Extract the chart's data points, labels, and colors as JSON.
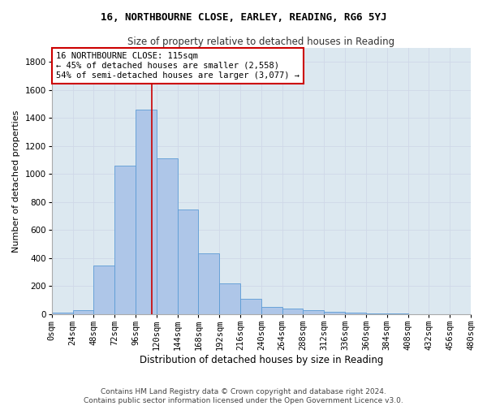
{
  "title": "16, NORTHBOURNE CLOSE, EARLEY, READING, RG6 5YJ",
  "subtitle": "Size of property relative to detached houses in Reading",
  "xlabel": "Distribution of detached houses by size in Reading",
  "ylabel": "Number of detached properties",
  "bar_values": [
    10,
    30,
    350,
    1060,
    1460,
    1110,
    745,
    435,
    220,
    110,
    50,
    40,
    30,
    20,
    10,
    5,
    3,
    2,
    1
  ],
  "bin_edges": [
    0,
    24,
    48,
    72,
    96,
    120,
    144,
    168,
    192,
    216,
    240,
    264,
    288,
    312,
    336,
    360,
    384,
    408,
    432,
    456
  ],
  "tick_labels": [
    "0sqm",
    "24sqm",
    "48sqm",
    "72sqm",
    "96sqm",
    "120sqm",
    "144sqm",
    "168sqm",
    "192sqm",
    "216sqm",
    "240sqm",
    "264sqm",
    "288sqm",
    "312sqm",
    "336sqm",
    "360sqm",
    "384sqm",
    "408sqm",
    "432sqm",
    "456sqm",
    "480sqm"
  ],
  "bar_color": "#aec6e8",
  "bar_edge_color": "#5b9bd5",
  "vline_x": 115,
  "ylim": [
    0,
    1900
  ],
  "yticks": [
    0,
    200,
    400,
    600,
    800,
    1000,
    1200,
    1400,
    1600,
    1800
  ],
  "annotation_text": "16 NORTHBOURNE CLOSE: 115sqm\n← 45% of detached houses are smaller (2,558)\n54% of semi-detached houses are larger (3,077) →",
  "annotation_box_color": "#ffffff",
  "annotation_box_edge": "#cc0000",
  "footer1": "Contains HM Land Registry data © Crown copyright and database right 2024.",
  "footer2": "Contains public sector information licensed under the Open Government Licence v3.0.",
  "bg_color": "#ffffff",
  "grid_color": "#d0d8e8",
  "ax_bg_color": "#dce8f0",
  "title_fontsize": 9,
  "subtitle_fontsize": 8.5,
  "xlabel_fontsize": 8.5,
  "ylabel_fontsize": 8,
  "tick_fontsize": 7.5,
  "footer_fontsize": 6.5,
  "annotation_fontsize": 7.5
}
